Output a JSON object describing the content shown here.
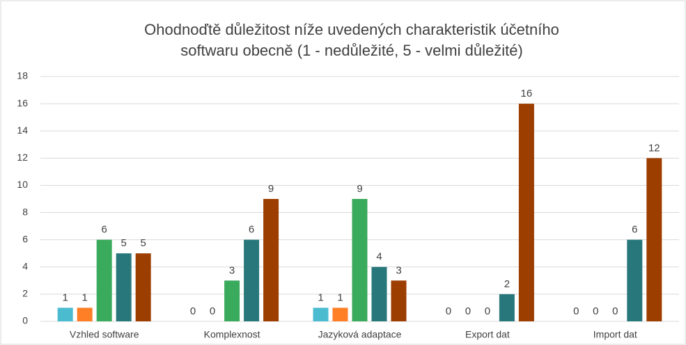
{
  "chart_data": {
    "type": "bar",
    "title": [
      "Ohodnoďtě důležitost níže uvedených charakteristik účetního",
      "softwaru obecně (1 - nedůležité, 5 - velmi důležité)"
    ],
    "categories": [
      "Vzhled software",
      "Komplexnost",
      "Jazyková adaptace",
      "Export dat",
      "Import dat"
    ],
    "series": [
      {
        "color": "#4bbccf",
        "values": [
          1,
          0,
          1,
          0,
          0
        ]
      },
      {
        "color": "#ff7f27",
        "values": [
          1,
          0,
          1,
          0,
          0
        ]
      },
      {
        "color": "#3aaa5c",
        "values": [
          6,
          3,
          9,
          0,
          0
        ]
      },
      {
        "color": "#28777a",
        "values": [
          5,
          6,
          4,
          2,
          6
        ]
      },
      {
        "color": "#9c3e00",
        "values": [
          5,
          9,
          3,
          16,
          12
        ]
      }
    ],
    "ylim": [
      0,
      18
    ],
    "yticks": [
      0,
      2,
      4,
      6,
      8,
      10,
      12,
      14,
      16,
      18
    ],
    "grid": true
  }
}
